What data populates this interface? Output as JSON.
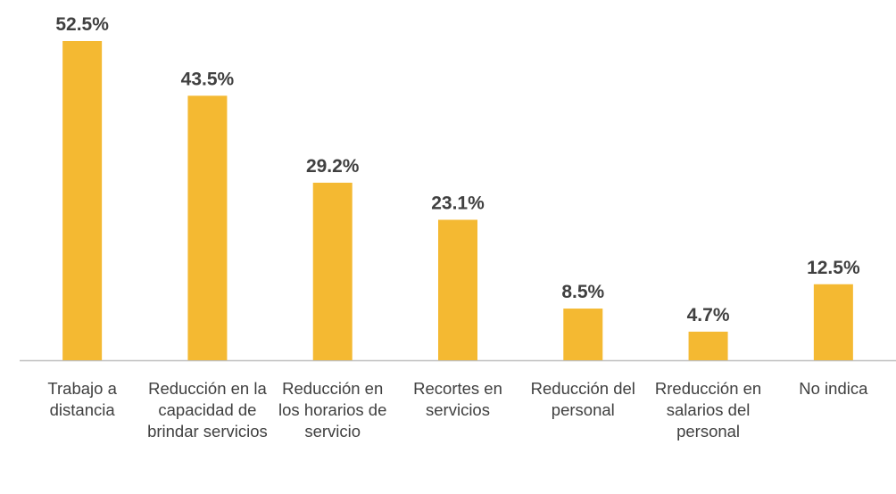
{
  "chart_data": {
    "type": "bar",
    "categories": [
      "Trabajo a distancia",
      "Reducción en la capacidad de brindar servicios",
      "Reducción en los horarios de servicio",
      "Recortes en servicios",
      "Reducción del personal",
      "Rreducción en salarios del personal",
      "No indica"
    ],
    "values": [
      52.5,
      43.5,
      29.2,
      23.1,
      8.5,
      4.7,
      12.5
    ],
    "value_labels": [
      "52.5%",
      "43.5%",
      "29.2%",
      "23.1%",
      "8.5%",
      "4.7%",
      "12.5%"
    ],
    "color": "#f4b932"
  }
}
